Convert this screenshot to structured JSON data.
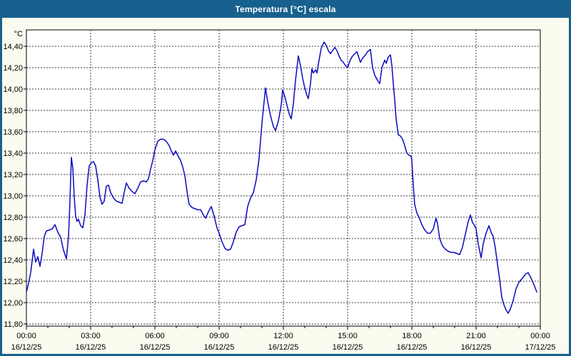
{
  "window": {
    "title": "Temperatura [°C] escala"
  },
  "colors": {
    "titlebar_bg": "#17618e",
    "border": "#17618e",
    "page_bg": "#fbfbef",
    "plot_bg": "#ffffff",
    "line": "#0a0ac0",
    "grid": "#3a3a3a",
    "frame": "#000000",
    "text": "#000000"
  },
  "chart_data": {
    "type": "line",
    "title": "Temperatura [°C] escala",
    "unit_label": "°C",
    "ylabel": "°C",
    "xlabel": "",
    "ylim": [
      11.8,
      14.4
    ],
    "y_tick_step": 0.2,
    "grid": "dashed",
    "legend": "none",
    "x_minutes_range": [
      0,
      1440
    ],
    "y_tick_labels": [
      "14,40",
      "14,20",
      "14,00",
      "13,80",
      "13,60",
      "13,40",
      "13,20",
      "13,00",
      "12,80",
      "12,60",
      "12,40",
      "12,20",
      "12,00",
      "11,80"
    ],
    "y_tick_values": [
      14.4,
      14.2,
      14.0,
      13.8,
      13.6,
      13.4,
      13.2,
      13.0,
      12.8,
      12.6,
      12.4,
      12.2,
      12.0,
      11.8
    ],
    "x_ticks": [
      {
        "minutes": 0,
        "time": "00:00",
        "date": "16/12/25"
      },
      {
        "minutes": 180,
        "time": "03:00",
        "date": "16/12/25"
      },
      {
        "minutes": 360,
        "time": "06:00",
        "date": "16/12/25"
      },
      {
        "minutes": 540,
        "time": "09:00",
        "date": "16/12/25"
      },
      {
        "minutes": 720,
        "time": "12:00",
        "date": "16/12/25"
      },
      {
        "minutes": 900,
        "time": "15:00",
        "date": "16/12/25"
      },
      {
        "minutes": 1080,
        "time": "18:00",
        "date": "16/12/25"
      },
      {
        "minutes": 1260,
        "time": "21:00",
        "date": "16/12/25"
      },
      {
        "minutes": 1440,
        "time": "00:00",
        "date": "17/12/25"
      }
    ],
    "series": [
      {
        "name": "Temperatura",
        "points": [
          [
            0,
            12.1
          ],
          [
            6,
            12.18
          ],
          [
            12,
            12.28
          ],
          [
            20,
            12.5
          ],
          [
            26,
            12.38
          ],
          [
            32,
            12.43
          ],
          [
            38,
            12.34
          ],
          [
            44,
            12.46
          ],
          [
            50,
            12.62
          ],
          [
            56,
            12.67
          ],
          [
            64,
            12.68
          ],
          [
            72,
            12.69
          ],
          [
            80,
            12.73
          ],
          [
            88,
            12.66
          ],
          [
            96,
            12.61
          ],
          [
            104,
            12.49
          ],
          [
            112,
            12.41
          ],
          [
            118,
            12.62
          ],
          [
            122,
            12.95
          ],
          [
            126,
            13.36
          ],
          [
            130,
            13.26
          ],
          [
            134,
            12.99
          ],
          [
            138,
            12.81
          ],
          [
            142,
            12.76
          ],
          [
            146,
            12.78
          ],
          [
            152,
            12.72
          ],
          [
            158,
            12.7
          ],
          [
            164,
            12.82
          ],
          [
            170,
            13.1
          ],
          [
            176,
            13.28
          ],
          [
            182,
            13.31
          ],
          [
            188,
            13.32
          ],
          [
            194,
            13.28
          ],
          [
            200,
            13.15
          ],
          [
            206,
            12.99
          ],
          [
            212,
            12.92
          ],
          [
            218,
            12.95
          ],
          [
            224,
            13.09
          ],
          [
            230,
            13.1
          ],
          [
            236,
            13.03
          ],
          [
            244,
            12.98
          ],
          [
            252,
            12.95
          ],
          [
            260,
            12.94
          ],
          [
            268,
            12.93
          ],
          [
            274,
            13.03
          ],
          [
            280,
            13.12
          ],
          [
            288,
            13.07
          ],
          [
            296,
            13.04
          ],
          [
            304,
            13.02
          ],
          [
            312,
            13.07
          ],
          [
            320,
            13.13
          ],
          [
            328,
            13.14
          ],
          [
            336,
            13.13
          ],
          [
            342,
            13.16
          ],
          [
            348,
            13.25
          ],
          [
            354,
            13.33
          ],
          [
            360,
            13.43
          ],
          [
            368,
            13.51
          ],
          [
            376,
            13.53
          ],
          [
            384,
            13.53
          ],
          [
            392,
            13.51
          ],
          [
            400,
            13.47
          ],
          [
            406,
            13.42
          ],
          [
            412,
            13.38
          ],
          [
            418,
            13.42
          ],
          [
            424,
            13.38
          ],
          [
            432,
            13.33
          ],
          [
            438,
            13.27
          ],
          [
            444,
            13.19
          ],
          [
            450,
            13.04
          ],
          [
            456,
            12.92
          ],
          [
            464,
            12.89
          ],
          [
            472,
            12.88
          ],
          [
            480,
            12.87
          ],
          [
            488,
            12.87
          ],
          [
            496,
            12.82
          ],
          [
            502,
            12.79
          ],
          [
            510,
            12.85
          ],
          [
            518,
            12.9
          ],
          [
            526,
            12.81
          ],
          [
            534,
            12.7
          ],
          [
            540,
            12.65
          ],
          [
            548,
            12.57
          ],
          [
            556,
            12.51
          ],
          [
            564,
            12.49
          ],
          [
            572,
            12.5
          ],
          [
            580,
            12.57
          ],
          [
            588,
            12.66
          ],
          [
            596,
            12.71
          ],
          [
            604,
            12.72
          ],
          [
            612,
            12.73
          ],
          [
            620,
            12.9
          ],
          [
            628,
            12.98
          ],
          [
            636,
            13.03
          ],
          [
            644,
            13.15
          ],
          [
            652,
            13.35
          ],
          [
            660,
            13.68
          ],
          [
            666,
            13.88
          ],
          [
            670,
            14.01
          ],
          [
            676,
            13.88
          ],
          [
            684,
            13.75
          ],
          [
            692,
            13.65
          ],
          [
            698,
            13.61
          ],
          [
            706,
            13.7
          ],
          [
            714,
            13.85
          ],
          [
            718,
            13.99
          ],
          [
            724,
            13.93
          ],
          [
            730,
            13.85
          ],
          [
            736,
            13.77
          ],
          [
            742,
            13.72
          ],
          [
            748,
            13.86
          ],
          [
            754,
            14.08
          ],
          [
            762,
            14.31
          ],
          [
            768,
            14.22
          ],
          [
            774,
            14.1
          ],
          [
            780,
            14.01
          ],
          [
            786,
            13.94
          ],
          [
            790,
            13.91
          ],
          [
            796,
            14.05
          ],
          [
            800,
            14.19
          ],
          [
            804,
            14.15
          ],
          [
            810,
            14.18
          ],
          [
            814,
            14.15
          ],
          [
            820,
            14.27
          ],
          [
            826,
            14.38
          ],
          [
            834,
            14.44
          ],
          [
            840,
            14.41
          ],
          [
            846,
            14.36
          ],
          [
            852,
            14.33
          ],
          [
            858,
            14.36
          ],
          [
            864,
            14.39
          ],
          [
            870,
            14.36
          ],
          [
            876,
            14.31
          ],
          [
            882,
            14.27
          ],
          [
            888,
            14.25
          ],
          [
            894,
            14.22
          ],
          [
            900,
            14.2
          ],
          [
            906,
            14.26
          ],
          [
            912,
            14.3
          ],
          [
            920,
            14.33
          ],
          [
            926,
            14.35
          ],
          [
            932,
            14.29
          ],
          [
            936,
            14.25
          ],
          [
            942,
            14.29
          ],
          [
            948,
            14.31
          ],
          [
            956,
            14.35
          ],
          [
            964,
            14.37
          ],
          [
            970,
            14.2
          ],
          [
            976,
            14.13
          ],
          [
            984,
            14.08
          ],
          [
            990,
            14.05
          ],
          [
            996,
            14.2
          ],
          [
            1004,
            14.27
          ],
          [
            1008,
            14.24
          ],
          [
            1014,
            14.3
          ],
          [
            1020,
            14.32
          ],
          [
            1024,
            14.22
          ],
          [
            1028,
            14.05
          ],
          [
            1032,
            13.9
          ],
          [
            1036,
            13.72
          ],
          [
            1042,
            13.57
          ],
          [
            1048,
            13.56
          ],
          [
            1054,
            13.53
          ],
          [
            1060,
            13.47
          ],
          [
            1066,
            13.4
          ],
          [
            1072,
            13.38
          ],
          [
            1078,
            13.37
          ],
          [
            1080,
            13.33
          ],
          [
            1084,
            13.1
          ],
          [
            1088,
            12.92
          ],
          [
            1094,
            12.84
          ],
          [
            1100,
            12.8
          ],
          [
            1108,
            12.73
          ],
          [
            1116,
            12.68
          ],
          [
            1124,
            12.65
          ],
          [
            1132,
            12.65
          ],
          [
            1140,
            12.69
          ],
          [
            1148,
            12.79
          ],
          [
            1152,
            12.74
          ],
          [
            1158,
            12.6
          ],
          [
            1166,
            12.53
          ],
          [
            1174,
            12.5
          ],
          [
            1182,
            12.48
          ],
          [
            1190,
            12.47
          ],
          [
            1198,
            12.47
          ],
          [
            1206,
            12.46
          ],
          [
            1214,
            12.45
          ],
          [
            1222,
            12.52
          ],
          [
            1230,
            12.64
          ],
          [
            1238,
            12.76
          ],
          [
            1244,
            12.82
          ],
          [
            1250,
            12.75
          ],
          [
            1256,
            12.72
          ],
          [
            1260,
            12.69
          ],
          [
            1266,
            12.55
          ],
          [
            1274,
            12.42
          ],
          [
            1280,
            12.55
          ],
          [
            1288,
            12.65
          ],
          [
            1296,
            12.72
          ],
          [
            1302,
            12.66
          ],
          [
            1308,
            12.62
          ],
          [
            1314,
            12.51
          ],
          [
            1320,
            12.36
          ],
          [
            1326,
            12.22
          ],
          [
            1332,
            12.05
          ],
          [
            1338,
            11.98
          ],
          [
            1344,
            11.93
          ],
          [
            1350,
            11.9
          ],
          [
            1356,
            11.94
          ],
          [
            1364,
            12.02
          ],
          [
            1372,
            12.13
          ],
          [
            1380,
            12.19
          ],
          [
            1390,
            12.23
          ],
          [
            1400,
            12.27
          ],
          [
            1406,
            12.28
          ],
          [
            1414,
            12.23
          ],
          [
            1422,
            12.17
          ],
          [
            1430,
            12.1
          ]
        ]
      }
    ]
  }
}
